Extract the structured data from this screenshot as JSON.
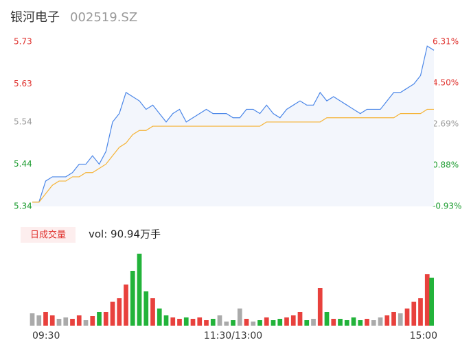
{
  "chart_data": {
    "type": "line",
    "title": "银河电子",
    "subtitle": "002519.SZ",
    "xlim": [
      0,
      240
    ],
    "xticks": [
      {
        "value": 0,
        "label": "09:30"
      },
      {
        "value": 120,
        "label": "11:30/13:00"
      },
      {
        "value": 240,
        "label": "15:00"
      }
    ],
    "x": [
      0,
      4,
      8,
      12,
      16,
      20,
      24,
      28,
      32,
      36,
      40,
      44,
      48,
      52,
      56,
      60,
      64,
      68,
      72,
      76,
      80,
      84,
      88,
      92,
      96,
      100,
      104,
      108,
      112,
      116,
      120,
      124,
      128,
      132,
      136,
      140,
      144,
      148,
      152,
      156,
      160,
      164,
      168,
      172,
      176,
      180,
      184,
      188,
      192,
      196,
      200,
      204,
      208,
      212,
      216,
      220,
      224,
      228,
      232,
      236,
      240
    ],
    "ylim": [
      5.34,
      5.73
    ],
    "yticks": [
      5.73,
      5.63,
      5.54,
      5.44,
      5.34
    ],
    "ytick_colors": [
      "#e0332f",
      "#e0332f",
      "#999999",
      "#1a9b2e",
      "#1a9b2e"
    ],
    "y2lim": [
      -0.93,
      6.31
    ],
    "y2ticks": [
      {
        "value": 6.31,
        "label": "6.31%"
      },
      {
        "value": 4.5,
        "label": "4.50%"
      },
      {
        "value": 2.69,
        "label": "2.69%"
      },
      {
        "value": 0.88,
        "label": "0.88%"
      },
      {
        "value": -0.93,
        "label": "-0.93%"
      }
    ],
    "series": [
      {
        "name": "price",
        "color": "#4a86e8",
        "fill": "#f3f6fc",
        "values": [
          5.35,
          5.35,
          5.4,
          5.41,
          5.41,
          5.41,
          5.42,
          5.44,
          5.44,
          5.46,
          5.44,
          5.47,
          5.54,
          5.56,
          5.61,
          5.6,
          5.59,
          5.57,
          5.58,
          5.56,
          5.54,
          5.56,
          5.57,
          5.54,
          5.55,
          5.56,
          5.57,
          5.56,
          5.56,
          5.56,
          5.55,
          5.55,
          5.57,
          5.57,
          5.56,
          5.58,
          5.56,
          5.55,
          5.57,
          5.58,
          5.59,
          5.58,
          5.58,
          5.61,
          5.59,
          5.6,
          5.59,
          5.58,
          5.57,
          5.56,
          5.57,
          5.57,
          5.57,
          5.59,
          5.61,
          5.61,
          5.62,
          5.63,
          5.65,
          5.72,
          5.71
        ]
      },
      {
        "name": "average",
        "color": "#f5b335",
        "values": [
          5.35,
          5.35,
          5.37,
          5.39,
          5.4,
          5.4,
          5.41,
          5.41,
          5.42,
          5.42,
          5.43,
          5.44,
          5.46,
          5.48,
          5.49,
          5.51,
          5.52,
          5.52,
          5.53,
          5.53,
          5.53,
          5.53,
          5.53,
          5.53,
          5.53,
          5.53,
          5.53,
          5.53,
          5.53,
          5.53,
          5.53,
          5.53,
          5.53,
          5.53,
          5.53,
          5.54,
          5.54,
          5.54,
          5.54,
          5.54,
          5.54,
          5.54,
          5.54,
          5.54,
          5.55,
          5.55,
          5.55,
          5.55,
          5.55,
          5.55,
          5.55,
          5.55,
          5.55,
          5.55,
          5.55,
          5.56,
          5.56,
          5.56,
          5.56,
          5.57,
          5.57
        ]
      }
    ],
    "volume": {
      "legend": "日成交量",
      "label": "vol: 90.94万手",
      "up_color": "#e8413d",
      "down_color": "#22b33a",
      "flat_color": "#aaaaaa",
      "ylim": [
        0,
        110
      ],
      "values": [
        18,
        15,
        20,
        15,
        10,
        12,
        10,
        15,
        8,
        14,
        20,
        20,
        35,
        40,
        60,
        80,
        105,
        50,
        40,
        25,
        15,
        12,
        10,
        12,
        10,
        12,
        8,
        10,
        15,
        6,
        8,
        25,
        10,
        6,
        8,
        12,
        8,
        10,
        12,
        15,
        20,
        8,
        10,
        55,
        20,
        10,
        10,
        8,
        12,
        8,
        10,
        8,
        12,
        15,
        20,
        18,
        25,
        35,
        40,
        75,
        70
      ]
    }
  }
}
